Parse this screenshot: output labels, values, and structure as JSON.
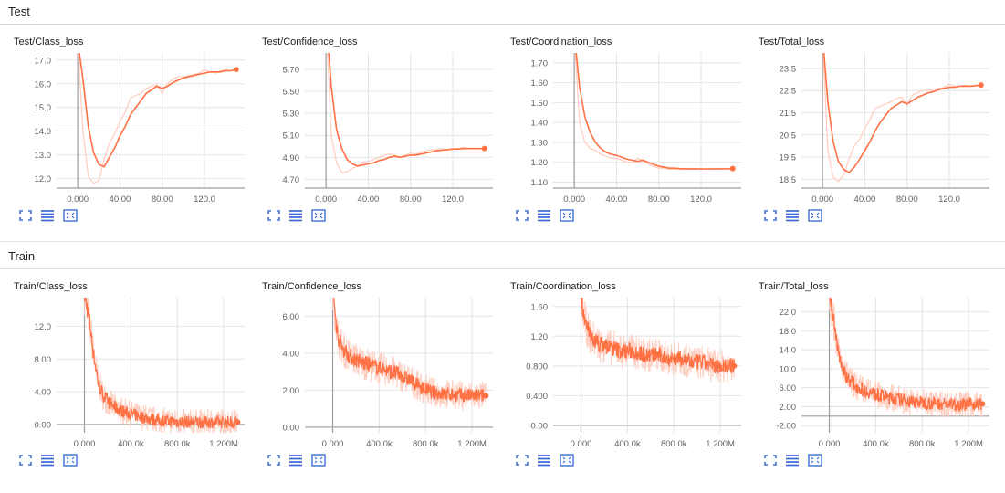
{
  "sections": [
    {
      "label": "Test"
    },
    {
      "label": "Train"
    }
  ],
  "colors": {
    "accent": "#ff7043",
    "accent_light": "#ffcfc2",
    "button": "#3f6fd8",
    "grid": "#e4e4e4",
    "axis": "#9e9e9e",
    "text": "#212121",
    "tick": "#616161"
  },
  "icons": [
    "expand-icon",
    "list-icon",
    "fit-domain-icon"
  ],
  "chart_data": [
    {
      "type": "line",
      "title": "Test/Class_loss",
      "xticks": [
        "0.000",
        "40.00",
        "80.00",
        "120.0"
      ],
      "xtick_values": [
        0,
        40,
        80,
        120
      ],
      "yticks": [
        "12.0",
        "13.0",
        "14.0",
        "15.0",
        "16.0",
        "17.0"
      ],
      "ytick_values": [
        12,
        13,
        14,
        15,
        16,
        17
      ],
      "xlim": [
        -20,
        158
      ],
      "ylim": [
        11.6,
        17.3
      ],
      "series": [
        {
          "smoothed": true,
          "x": [
            0,
            5,
            10,
            15,
            20,
            25,
            30,
            35,
            40,
            45,
            50,
            55,
            60,
            65,
            70,
            75,
            80,
            85,
            90,
            95,
            100,
            105,
            110,
            115,
            120,
            125,
            130,
            135,
            140,
            145,
            150
          ],
          "y": [
            17.8,
            16.2,
            14.2,
            13.1,
            12.6,
            12.5,
            12.9,
            13.3,
            13.8,
            14.2,
            14.7,
            15.0,
            15.3,
            15.6,
            15.75,
            15.9,
            15.8,
            15.9,
            16.05,
            16.15,
            16.25,
            16.3,
            16.35,
            16.4,
            16.45,
            16.5,
            16.5,
            16.5,
            16.55,
            16.55,
            16.6
          ]
        },
        {
          "smoothed": false,
          "x": [
            0,
            5,
            10,
            15,
            20,
            25,
            30,
            35,
            40,
            45,
            50,
            55,
            60,
            65,
            70,
            75,
            80,
            85,
            90,
            95,
            100,
            105,
            110,
            115,
            120,
            125,
            130,
            135,
            140,
            145,
            150
          ],
          "y": [
            17.8,
            14.0,
            12.1,
            11.8,
            11.9,
            12.8,
            13.5,
            13.9,
            14.4,
            14.8,
            15.4,
            15.5,
            15.6,
            15.8,
            15.9,
            15.95,
            15.6,
            16.0,
            16.2,
            16.3,
            16.3,
            16.35,
            16.4,
            16.45,
            16.6,
            16.5,
            16.45,
            16.55,
            16.6,
            16.55,
            16.6
          ]
        }
      ]
    },
    {
      "type": "line",
      "title": "Test/Confidence_loss",
      "xticks": [
        "0.000",
        "40.00",
        "80.00",
        "120.0"
      ],
      "xtick_values": [
        0,
        40,
        80,
        120
      ],
      "yticks": [
        "4.70",
        "4.90",
        "5.10",
        "5.30",
        "5.50",
        "5.70"
      ],
      "ytick_values": [
        4.7,
        4.9,
        5.1,
        5.3,
        5.5,
        5.7
      ],
      "xlim": [
        -20,
        158
      ],
      "ylim": [
        4.62,
        5.85
      ],
      "series": [
        {
          "smoothed": true,
          "x": [
            0,
            5,
            10,
            15,
            20,
            25,
            30,
            35,
            40,
            45,
            50,
            55,
            60,
            65,
            70,
            75,
            80,
            85,
            90,
            95,
            100,
            105,
            110,
            115,
            120,
            125,
            130,
            135,
            140,
            145,
            150
          ],
          "y": [
            6.2,
            5.55,
            5.15,
            4.98,
            4.88,
            4.84,
            4.82,
            4.83,
            4.84,
            4.85,
            4.87,
            4.88,
            4.9,
            4.91,
            4.9,
            4.91,
            4.92,
            4.92,
            4.93,
            4.94,
            4.95,
            4.96,
            4.965,
            4.97,
            4.975,
            4.975,
            4.98,
            4.98,
            4.98,
            4.98,
            4.98
          ]
        },
        {
          "smoothed": false,
          "x": [
            0,
            5,
            10,
            15,
            20,
            25,
            30,
            35,
            40,
            45,
            50,
            55,
            60,
            65,
            70,
            75,
            80,
            85,
            90,
            95,
            100,
            105,
            110,
            115,
            120,
            125,
            130,
            135,
            140,
            145,
            150
          ],
          "y": [
            6.2,
            5.1,
            4.85,
            4.76,
            4.77,
            4.8,
            4.82,
            4.86,
            4.86,
            4.88,
            4.9,
            4.92,
            4.93,
            4.92,
            4.9,
            4.92,
            4.94,
            4.93,
            4.95,
            4.96,
            4.97,
            4.97,
            4.98,
            4.97,
            4.98,
            4.98,
            4.99,
            4.98,
            4.98,
            4.98,
            4.98
          ]
        }
      ]
    },
    {
      "type": "line",
      "title": "Test/Coordination_loss",
      "xticks": [
        "0.000",
        "40.00",
        "80.00",
        "120.0"
      ],
      "xtick_values": [
        0,
        40,
        80,
        120
      ],
      "yticks": [
        "1.10",
        "1.20",
        "1.30",
        "1.40",
        "1.50",
        "1.60",
        "1.70"
      ],
      "ytick_values": [
        1.1,
        1.2,
        1.3,
        1.4,
        1.5,
        1.6,
        1.7
      ],
      "xlim": [
        -20,
        158
      ],
      "ylim": [
        1.07,
        1.75
      ],
      "series": [
        {
          "smoothed": true,
          "x": [
            0,
            5,
            10,
            15,
            20,
            25,
            30,
            35,
            40,
            45,
            50,
            55,
            60,
            65,
            70,
            75,
            80,
            85,
            90,
            95,
            100,
            105,
            110,
            115,
            120,
            125,
            130,
            135,
            140,
            145,
            150
          ],
          "y": [
            1.85,
            1.58,
            1.43,
            1.35,
            1.3,
            1.27,
            1.25,
            1.24,
            1.235,
            1.225,
            1.215,
            1.21,
            1.205,
            1.21,
            1.2,
            1.19,
            1.18,
            1.175,
            1.17,
            1.17,
            1.168,
            1.167,
            1.167,
            1.167,
            1.166,
            1.166,
            1.166,
            1.167,
            1.167,
            1.167,
            1.168
          ]
        },
        {
          "smoothed": false,
          "x": [
            0,
            5,
            10,
            15,
            20,
            25,
            30,
            35,
            40,
            45,
            50,
            55,
            60,
            65,
            70,
            75,
            80,
            85,
            90,
            95,
            100,
            105,
            110,
            115,
            120,
            125,
            130,
            135,
            140,
            145,
            150
          ],
          "y": [
            1.85,
            1.4,
            1.3,
            1.27,
            1.26,
            1.24,
            1.23,
            1.22,
            1.22,
            1.21,
            1.2,
            1.2,
            1.22,
            1.21,
            1.19,
            1.18,
            1.17,
            1.17,
            1.165,
            1.165,
            1.165,
            1.166,
            1.166,
            1.165,
            1.166,
            1.167,
            1.167,
            1.166,
            1.167,
            1.167,
            1.168
          ]
        }
      ]
    },
    {
      "type": "line",
      "title": "Test/Total_loss",
      "xticks": [
        "0.000",
        "40.00",
        "80.00",
        "120.0"
      ],
      "xtick_values": [
        0,
        40,
        80,
        120
      ],
      "yticks": [
        "18.5",
        "19.5",
        "20.5",
        "21.5",
        "22.5",
        "23.5"
      ],
      "ytick_values": [
        18.5,
        19.5,
        20.5,
        21.5,
        22.5,
        23.5
      ],
      "xlim": [
        -20,
        158
      ],
      "ylim": [
        18.1,
        24.2
      ],
      "series": [
        {
          "smoothed": true,
          "x": [
            0,
            5,
            10,
            15,
            20,
            25,
            30,
            35,
            40,
            45,
            50,
            55,
            60,
            65,
            70,
            75,
            80,
            85,
            90,
            95,
            100,
            105,
            110,
            115,
            120,
            125,
            130,
            135,
            140,
            145,
            150
          ],
          "y": [
            25.0,
            22.0,
            20.2,
            19.3,
            18.95,
            18.8,
            19.05,
            19.4,
            19.8,
            20.2,
            20.7,
            21.1,
            21.4,
            21.7,
            21.85,
            22.0,
            21.9,
            22.05,
            22.2,
            22.3,
            22.4,
            22.45,
            22.55,
            22.6,
            22.65,
            22.65,
            22.7,
            22.7,
            22.7,
            22.72,
            22.75
          ]
        },
        {
          "smoothed": false,
          "x": [
            0,
            5,
            10,
            15,
            20,
            25,
            30,
            35,
            40,
            45,
            50,
            55,
            60,
            65,
            70,
            75,
            80,
            85,
            90,
            95,
            100,
            105,
            110,
            115,
            120,
            125,
            130,
            135,
            140,
            145,
            150
          ],
          "y": [
            25.0,
            19.8,
            18.6,
            18.4,
            18.7,
            19.4,
            20.0,
            20.3,
            20.8,
            21.2,
            21.7,
            21.8,
            21.9,
            22.0,
            22.15,
            22.2,
            21.85,
            22.3,
            22.4,
            22.5,
            22.5,
            22.55,
            22.6,
            22.65,
            22.8,
            22.7,
            22.7,
            22.75,
            22.7,
            22.75,
            22.75
          ]
        }
      ]
    },
    {
      "type": "line",
      "title": "Train/Class_loss",
      "xticks": [
        "0.000",
        "400.0k",
        "800.0k",
        "1.200M"
      ],
      "xtick_values": [
        0,
        400000,
        800000,
        1200000
      ],
      "yticks": [
        "0.00",
        "4.00",
        "8.00",
        "12.0"
      ],
      "ytick_values": [
        0,
        4,
        8,
        12
      ],
      "xlim": [
        -240000,
        1380000
      ],
      "ylim": [
        -1.0,
        15.5
      ],
      "noisy": true,
      "series": [
        {
          "smoothed": true,
          "x": [
            0,
            40000,
            80000,
            120000,
            160000,
            200000,
            250000,
            300000,
            400000,
            500000,
            600000,
            700000,
            800000,
            900000,
            1000000,
            1100000,
            1200000,
            1320000
          ],
          "y": [
            16.0,
            13.0,
            8.5,
            5.0,
            3.6,
            2.9,
            2.2,
            1.8,
            1.3,
            0.9,
            0.6,
            0.45,
            0.35,
            0.3,
            0.3,
            0.3,
            0.3,
            0.3
          ]
        }
      ]
    },
    {
      "type": "line",
      "title": "Train/Confidence_loss",
      "xticks": [
        "0.000",
        "400.0k",
        "800.0k",
        "1.200M"
      ],
      "xtick_values": [
        0,
        400000,
        800000,
        1200000
      ],
      "yticks": [
        "0.00",
        "2.00",
        "4.00",
        "6.00"
      ],
      "ytick_values": [
        0,
        2,
        4,
        6
      ],
      "xlim": [
        -240000,
        1380000
      ],
      "ylim": [
        -0.3,
        7.0
      ],
      "noisy": true,
      "series": [
        {
          "smoothed": true,
          "x": [
            0,
            40000,
            80000,
            150000,
            250000,
            350000,
            450000,
            550000,
            650000,
            750000,
            850000,
            950000,
            1050000,
            1150000,
            1250000,
            1320000
          ],
          "y": [
            7.5,
            5.0,
            4.3,
            3.8,
            3.5,
            3.3,
            3.1,
            2.9,
            2.6,
            2.2,
            1.9,
            1.8,
            1.75,
            1.7,
            1.7,
            1.7
          ]
        }
      ]
    },
    {
      "type": "line",
      "title": "Train/Coordination_loss",
      "xticks": [
        "0.000",
        "400.0k",
        "800.0k",
        "1.200M"
      ],
      "xtick_values": [
        0,
        400000,
        800000,
        1200000
      ],
      "yticks": [
        "0.00",
        "0.400",
        "0.800",
        "1.20",
        "1.60"
      ],
      "ytick_values": [
        0,
        0.4,
        0.8,
        1.2,
        1.6
      ],
      "xlim": [
        -240000,
        1380000
      ],
      "ylim": [
        -0.1,
        1.72
      ],
      "noisy": true,
      "series": [
        {
          "smoothed": true,
          "x": [
            0,
            40000,
            80000,
            150000,
            250000,
            350000,
            450000,
            550000,
            650000,
            750000,
            850000,
            950000,
            1050000,
            1150000,
            1250000,
            1320000
          ],
          "y": [
            1.75,
            1.35,
            1.2,
            1.1,
            1.05,
            1.0,
            1.0,
            0.95,
            0.95,
            0.9,
            0.9,
            0.85,
            0.85,
            0.8,
            0.8,
            0.8
          ]
        }
      ]
    },
    {
      "type": "line",
      "title": "Train/Total_loss",
      "xticks": [
        "0.000",
        "400.0k",
        "800.0k",
        "1.200M"
      ],
      "xtick_values": [
        0,
        400000,
        800000,
        1200000
      ],
      "yticks": [
        "-2.00",
        "2.00",
        "6.00",
        "10.0",
        "14.0",
        "18.0",
        "22.0"
      ],
      "ytick_values": [
        -2,
        2,
        6,
        10,
        14,
        18,
        22
      ],
      "xlim": [
        -240000,
        1380000
      ],
      "ylim": [
        -3.5,
        25.0
      ],
      "noisy": true,
      "series": [
        {
          "smoothed": true,
          "x": [
            0,
            40000,
            80000,
            120000,
            160000,
            200000,
            250000,
            300000,
            400000,
            500000,
            600000,
            700000,
            800000,
            900000,
            1000000,
            1100000,
            1200000,
            1320000
          ],
          "y": [
            26.0,
            20.0,
            13.5,
            9.5,
            8.0,
            7.0,
            6.0,
            5.4,
            4.6,
            4.0,
            3.5,
            3.1,
            2.9,
            2.7,
            2.6,
            2.5,
            2.5,
            2.6
          ]
        }
      ]
    }
  ]
}
